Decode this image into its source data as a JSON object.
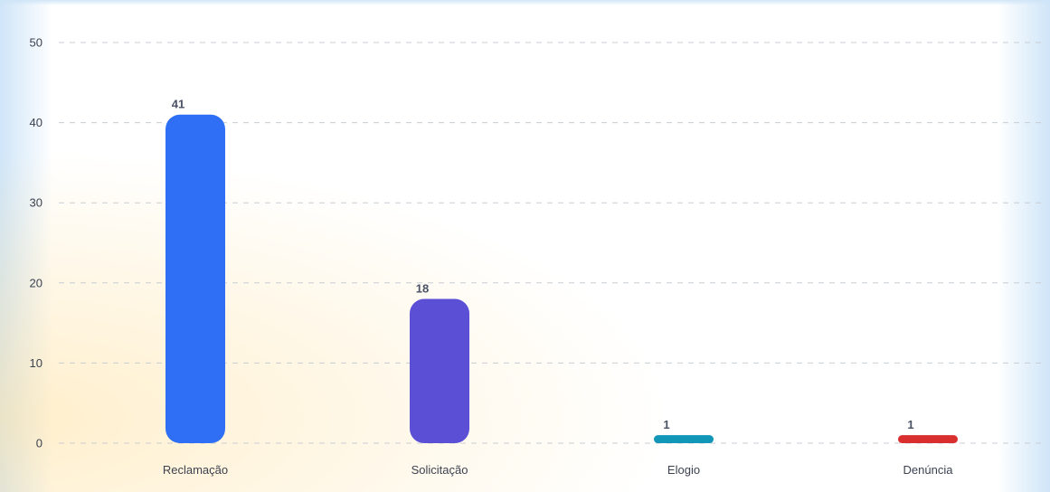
{
  "chart_data": {
    "type": "bar",
    "title": "",
    "xlabel": "",
    "ylabel": "",
    "categories": [
      "Reclamação",
      "Solicitação",
      "Elogio",
      "Denúncia"
    ],
    "values": [
      41,
      18,
      1,
      1
    ],
    "data_labels": [
      "41",
      "18",
      "1",
      "1"
    ],
    "colors": [
      "#2f6ff5",
      "#5b4fd5",
      "#1196b8",
      "#d9302f"
    ],
    "ylim": [
      0,
      50
    ],
    "yticks": [
      0,
      10,
      20,
      30,
      40,
      50
    ],
    "ytick_labels": [
      "0",
      "10",
      "20",
      "30",
      "40",
      "50"
    ],
    "grid": true,
    "legend": "none"
  }
}
